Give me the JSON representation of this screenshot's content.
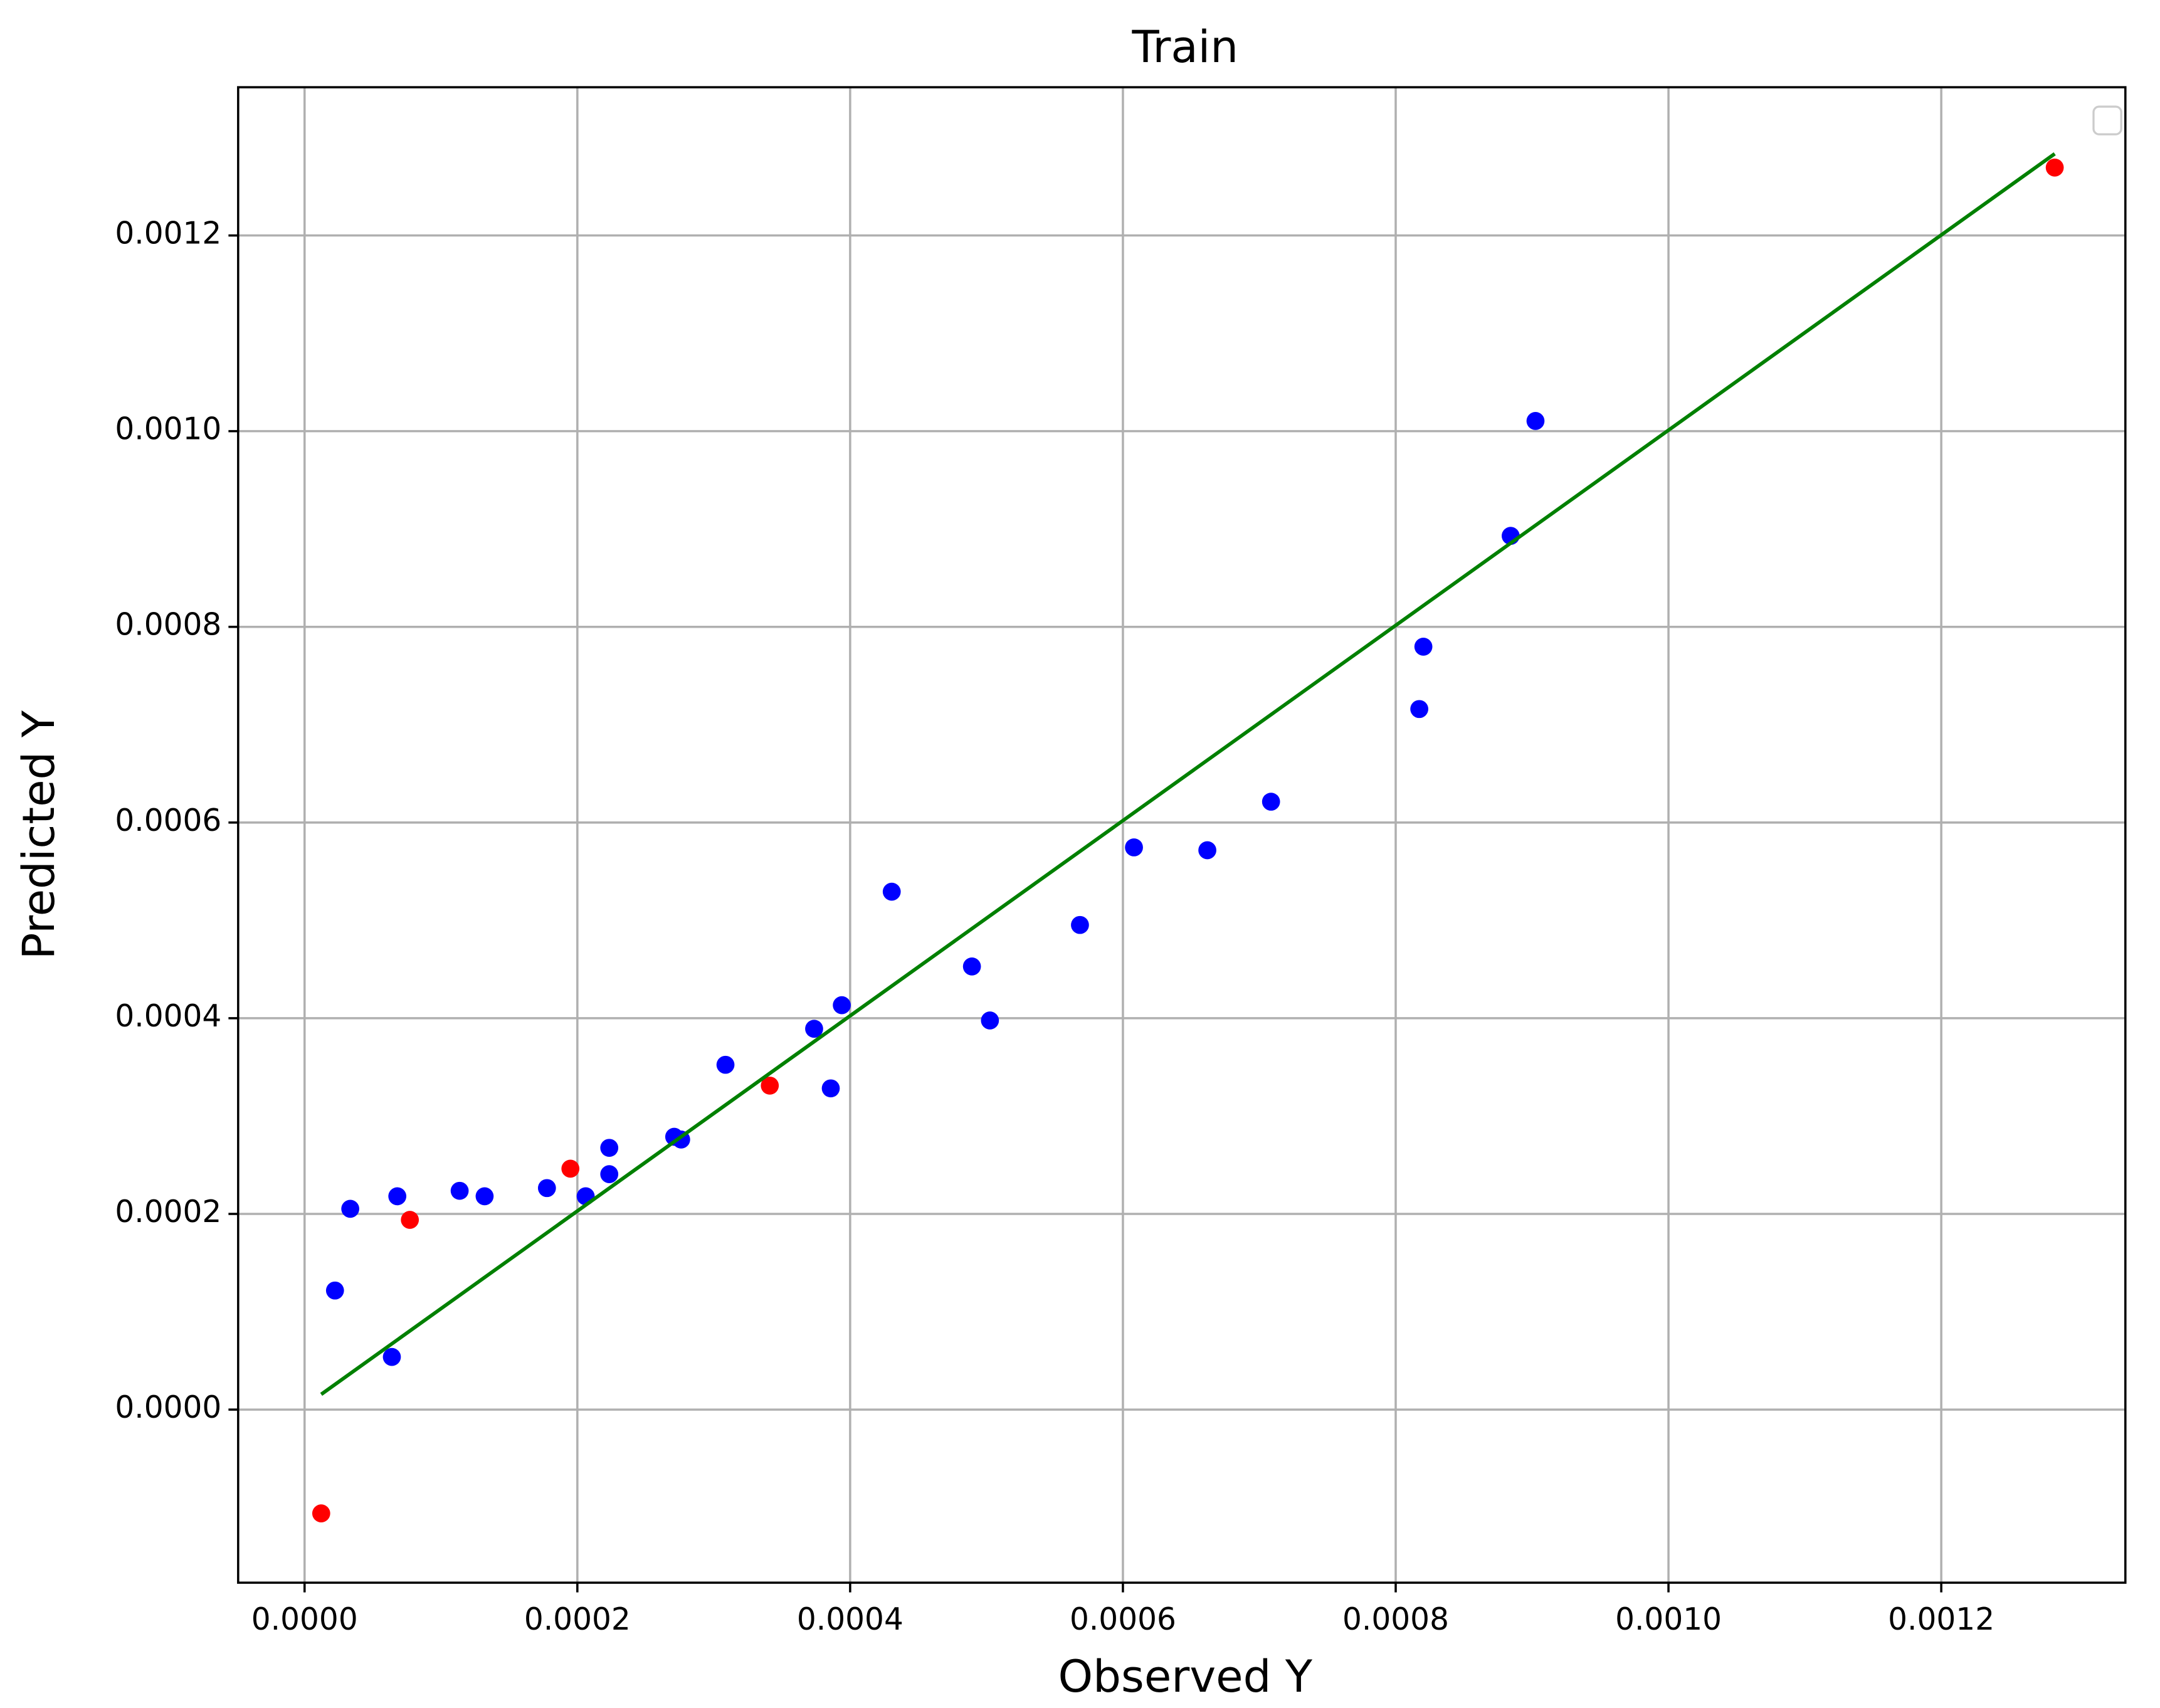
{
  "chart_data": {
    "type": "scatter",
    "title": "Train",
    "xlabel": "Observed Y",
    "ylabel": "Predicted Y",
    "grid": true,
    "xlim": [
      -4.87e-05,
      0.001335
    ],
    "ylim": [
      -0.0001769,
      0.0013515
    ],
    "xticks": [
      {
        "value": 0,
        "label": "0.0000"
      },
      0.0002,
      0.0004,
      0.0006,
      0.0008,
      {
        "value": 0.001,
        "label": "0.0010"
      },
      0.0012
    ],
    "yticks": [
      {
        "value": 0,
        "label": "0.0000"
      },
      0.0002,
      0.0004,
      0.0006,
      0.0008,
      {
        "value": 0.001,
        "label": "0.0010"
      },
      0.0012
    ],
    "series": [
      {
        "mode": "markers",
        "color": "#0000ff",
        "x": [
          2.23e-05,
          3.35e-05,
          6.4e-05,
          6.8e-05,
          0.0001137,
          0.000132,
          0.0001777,
          0.0002061,
          0.0002234,
          0.0002234,
          0.000271,
          0.0002761,
          0.0003086,
          0.0003736,
          0.0003858,
          0.0003939,
          0.0004305,
          0.0004893,
          0.0005025,
          0.0005685,
          0.0006081,
          0.0006619,
          0.0007086,
          0.0008173,
          0.0008203,
          0.0008843,
          0.0009025
        ],
        "values": [
          0.0001217,
          0.0002052,
          5.38e-05,
          0.000218,
          0.0002236,
          0.000218,
          0.0002264,
          0.000218,
          0.0002675,
          0.0002406,
          0.0002788,
          0.000276,
          0.0003524,
          0.0003892,
          0.0003283,
          0.0004133,
          0.0005293,
          0.0004529,
          0.0003977,
          0.0004953,
          0.0005746,
          0.0005717,
          0.0006213,
          0.000716,
          0.0007797,
          0.000893,
          0.0010104
        ]
      },
      {
        "mode": "markers",
        "color": "#ff0000",
        "x": [
          1.22e-05,
          7.72e-05,
          0.0001949,
          0.0003411,
          0.0012832
        ],
        "values": [
          -0.0001061,
          0.0001939,
          0.0002462,
          0.0003311,
          0.0012694
        ]
      },
      {
        "mode": "line",
        "color": "#008000",
        "x": [
          1.22e-05,
          0.0012832
        ],
        "values": [
          1.56e-05,
          0.0012835
        ]
      }
    ]
  }
}
